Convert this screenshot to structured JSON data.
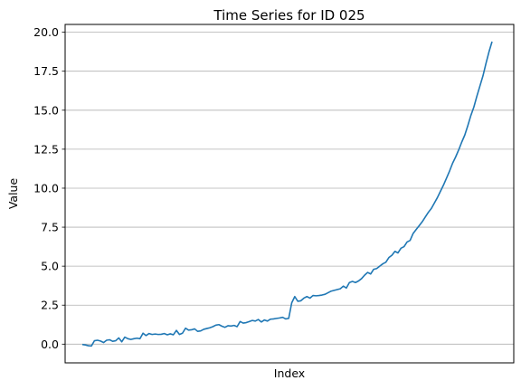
{
  "chart_data": {
    "type": "line",
    "title": "Time Series for ID 025",
    "xlabel": "Index",
    "ylabel": "Value",
    "ylim": [
      -1.2,
      20.5
    ],
    "y_ticks": [
      "0.0",
      "2.5",
      "5.0",
      "7.5",
      "10.0",
      "12.5",
      "15.0",
      "17.5",
      "20.0"
    ],
    "x_ticks_shown": false,
    "grid": "y-axis only",
    "line_color": "#1f77b4",
    "series": [
      {
        "values": [
          -0.02,
          -0.05,
          -0.1,
          -0.12,
          0.22,
          0.25,
          0.2,
          0.1,
          0.25,
          0.28,
          0.18,
          0.22,
          0.4,
          0.15,
          0.45,
          0.35,
          0.3,
          0.35,
          0.38,
          0.35,
          0.7,
          0.55,
          0.68,
          0.62,
          0.65,
          0.62,
          0.63,
          0.68,
          0.6,
          0.66,
          0.6,
          0.88,
          0.62,
          0.7,
          1.02,
          0.9,
          0.92,
          0.98,
          0.82,
          0.85,
          0.95,
          1.0,
          1.05,
          1.12,
          1.22,
          1.25,
          1.15,
          1.08,
          1.18,
          1.16,
          1.2,
          1.12,
          1.45,
          1.35,
          1.38,
          1.45,
          1.52,
          1.48,
          1.58,
          1.42,
          1.55,
          1.48,
          1.6,
          1.62,
          1.65,
          1.68,
          1.72,
          1.62,
          1.65,
          2.65,
          3.05,
          2.75,
          2.78,
          2.95,
          3.05,
          2.95,
          3.12,
          3.1,
          3.12,
          3.15,
          3.2,
          3.3,
          3.4,
          3.45,
          3.5,
          3.55,
          3.72,
          3.6,
          3.95,
          4.02,
          3.95,
          4.05,
          4.2,
          4.42,
          4.6,
          4.5,
          4.8,
          4.85,
          5.0,
          5.15,
          5.25,
          5.55,
          5.7,
          5.95,
          5.85,
          6.15,
          6.25,
          6.55,
          6.65,
          7.1,
          7.35,
          7.6,
          7.85,
          8.15,
          8.45,
          8.7,
          9.05,
          9.4,
          9.8,
          10.2,
          10.65,
          11.1,
          11.6,
          12.0,
          12.45,
          12.95,
          13.4,
          14.0,
          14.65,
          15.2,
          15.9,
          16.55,
          17.2,
          18.0,
          18.75,
          19.4
        ]
      }
    ]
  }
}
